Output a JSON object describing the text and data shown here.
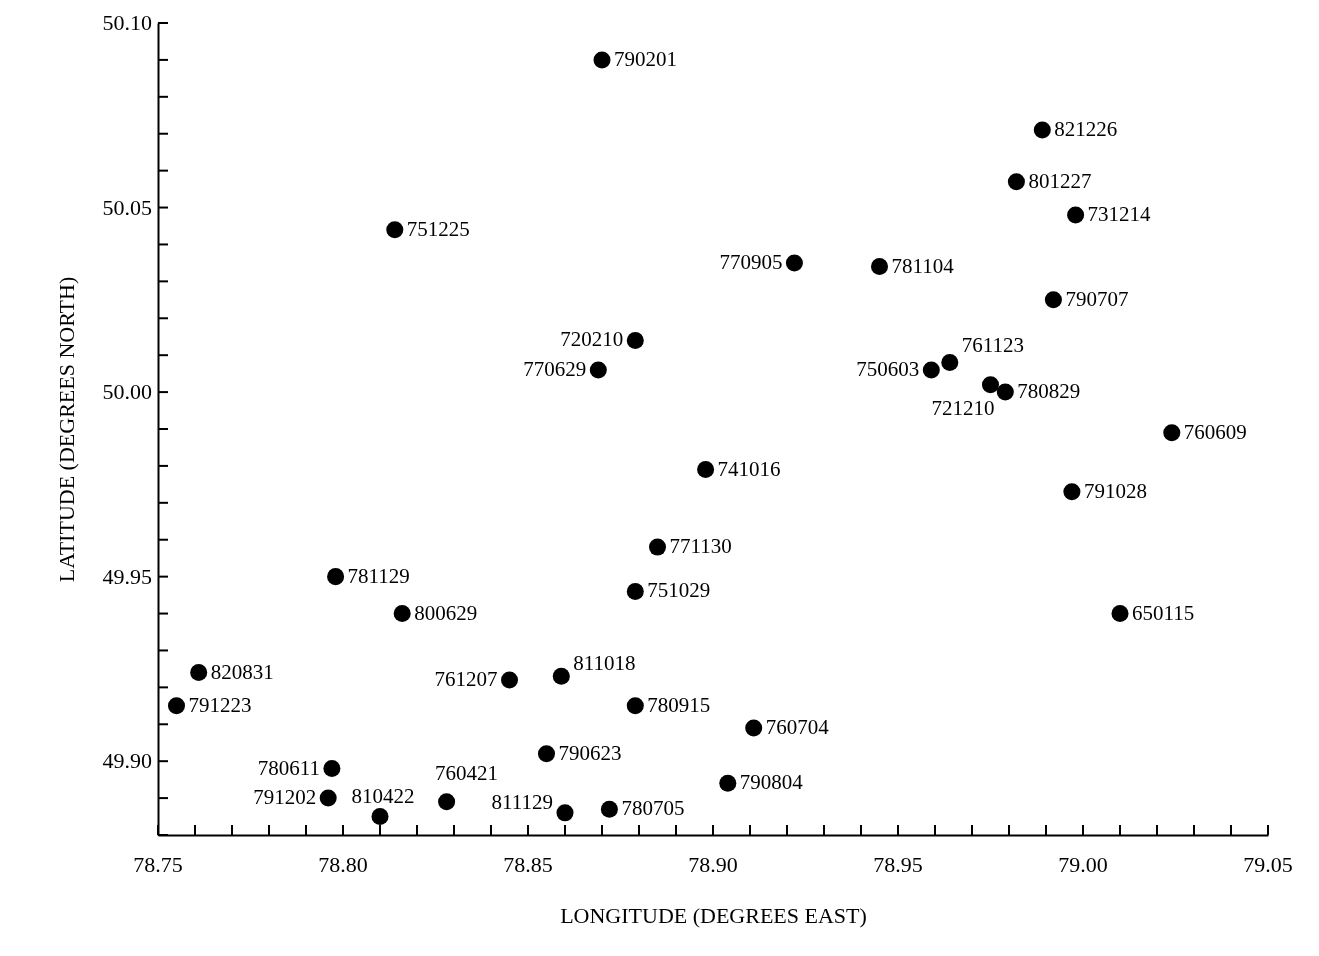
{
  "chart_data": {
    "type": "scatter",
    "xlabel": "LONGITUDE (DEGREES EAST)",
    "ylabel": "LATITUDE (DEGREES NORTH)",
    "x": [
      78.87,
      78.989,
      78.982,
      78.998,
      78.814,
      78.922,
      78.945,
      78.992,
      78.879,
      78.869,
      78.964,
      78.959,
      78.975,
      78.979,
      79.024,
      78.898,
      78.997,
      78.885,
      78.798,
      78.879,
      78.816,
      79.01,
      78.761,
      78.845,
      78.859,
      78.755,
      78.879,
      78.911,
      78.855,
      78.797,
      78.904,
      78.796,
      78.828,
      78.81,
      78.86,
      78.872
    ],
    "series": [
      {
        "color": "#000000",
        "values": [
          50.09,
          50.071,
          50.057,
          50.048,
          50.044,
          50.035,
          50.034,
          50.025,
          50.014,
          50.006,
          50.008,
          50.006,
          50.002,
          50.0,
          49.989,
          49.979,
          49.973,
          49.958,
          49.95,
          49.946,
          49.94,
          49.94,
          49.924,
          49.922,
          49.923,
          49.915,
          49.915,
          49.909,
          49.902,
          49.898,
          49.894,
          49.89,
          49.889,
          49.885,
          49.886,
          49.887
        ]
      }
    ],
    "annotations": [
      {
        "text": "790201",
        "x": 78.87,
        "y": 50.09
      },
      {
        "text": "821226",
        "x": 78.989,
        "y": 50.071
      },
      {
        "text": "801227",
        "x": 78.982,
        "y": 50.057
      },
      {
        "text": "731214",
        "x": 78.998,
        "y": 50.048
      },
      {
        "text": "751225",
        "x": 78.814,
        "y": 50.044
      },
      {
        "text": "770905",
        "x": 78.922,
        "y": 50.035
      },
      {
        "text": "781104",
        "x": 78.945,
        "y": 50.034
      },
      {
        "text": "790707",
        "x": 78.992,
        "y": 50.025
      },
      {
        "text": "720210",
        "x": 78.879,
        "y": 50.014
      },
      {
        "text": "770629",
        "x": 78.869,
        "y": 50.006
      },
      {
        "text": "761123",
        "x": 78.964,
        "y": 50.008
      },
      {
        "text": "750603",
        "x": 78.959,
        "y": 50.006
      },
      {
        "text": "721210",
        "x": 78.975,
        "y": 50.002
      },
      {
        "text": "780829",
        "x": 78.979,
        "y": 50.0
      },
      {
        "text": "760609",
        "x": 79.024,
        "y": 49.989
      },
      {
        "text": "741016",
        "x": 78.898,
        "y": 49.979
      },
      {
        "text": "791028",
        "x": 78.997,
        "y": 49.973
      },
      {
        "text": "771130",
        "x": 78.885,
        "y": 49.958
      },
      {
        "text": "781129",
        "x": 78.798,
        "y": 49.95
      },
      {
        "text": "751029",
        "x": 78.879,
        "y": 49.946
      },
      {
        "text": "800629",
        "x": 78.816,
        "y": 49.94
      },
      {
        "text": "650115",
        "x": 79.01,
        "y": 49.94
      },
      {
        "text": "820831",
        "x": 78.761,
        "y": 49.924
      },
      {
        "text": "761207",
        "x": 78.845,
        "y": 49.922
      },
      {
        "text": "811018",
        "x": 78.859,
        "y": 49.923
      },
      {
        "text": "791223",
        "x": 78.755,
        "y": 49.915
      },
      {
        "text": "780915",
        "x": 78.879,
        "y": 49.915
      },
      {
        "text": "760704",
        "x": 78.911,
        "y": 49.909
      },
      {
        "text": "790623",
        "x": 78.855,
        "y": 49.902
      },
      {
        "text": "780611",
        "x": 78.797,
        "y": 49.898
      },
      {
        "text": "790804",
        "x": 78.904,
        "y": 49.894
      },
      {
        "text": "791202",
        "x": 78.796,
        "y": 49.89
      },
      {
        "text": "760421",
        "x": 78.828,
        "y": 49.889
      },
      {
        "text": "810422",
        "x": 78.81,
        "y": 49.885
      },
      {
        "text": "811129",
        "x": 78.86,
        "y": 49.886
      },
      {
        "text": "780705",
        "x": 78.872,
        "y": 49.887
      }
    ],
    "marker": "circle",
    "grid": false,
    "xlim": [
      78.75,
      79.05
    ],
    "xticks": [
      78.75,
      {
        "value": 78.76,
        "label": null
      },
      {
        "value": 78.77,
        "label": null
      },
      {
        "value": 78.78,
        "label": null
      },
      {
        "value": 78.79,
        "label": null
      },
      {
        "value": 78.8,
        "label": "78.80"
      },
      {
        "value": 78.81,
        "label": null
      },
      {
        "value": 78.82,
        "label": null
      },
      {
        "value": 78.83,
        "label": null
      },
      {
        "value": 78.84,
        "label": null
      },
      78.85,
      {
        "value": 78.86,
        "label": null
      },
      {
        "value": 78.87,
        "label": null
      },
      {
        "value": 78.88,
        "label": null
      },
      {
        "value": 78.89,
        "label": null
      },
      {
        "value": 78.9,
        "label": "78.90"
      },
      {
        "value": 78.91,
        "label": null
      },
      {
        "value": 78.92,
        "label": null
      },
      {
        "value": 78.93,
        "label": null
      },
      {
        "value": 78.94,
        "label": null
      },
      78.95,
      {
        "value": 78.96,
        "label": null
      },
      {
        "value": 78.97,
        "label": null
      },
      {
        "value": 78.98,
        "label": null
      },
      {
        "value": 78.99,
        "label": null
      },
      {
        "value": 79,
        "label": "79.00"
      },
      {
        "value": 79.01,
        "label": null
      },
      {
        "value": 79.02,
        "label": null
      },
      {
        "value": 79.03,
        "label": null
      },
      {
        "value": 79.04,
        "label": null
      },
      79.05
    ],
    "ylim": [
      49.88,
      50.1
    ],
    "yticks": [
      {
        "value": 49.88,
        "label": null
      },
      {
        "value": 49.89,
        "label": null
      },
      {
        "value": 49.9,
        "label": "49.90"
      },
      {
        "value": 49.91,
        "label": null
      },
      {
        "value": 49.92,
        "label": null
      },
      {
        "value": 49.93,
        "label": null
      },
      {
        "value": 49.94,
        "label": null
      },
      49.95,
      {
        "value": 49.96,
        "label": null
      },
      {
        "value": 49.97,
        "label": null
      },
      {
        "value": 49.98,
        "label": null
      },
      {
        "value": 49.99,
        "label": null
      },
      {
        "value": 50,
        "label": "50.00"
      },
      {
        "value": 50.01,
        "label": null
      },
      {
        "value": 50.02,
        "label": null
      },
      {
        "value": 50.03,
        "label": null
      },
      {
        "value": 50.04,
        "label": null
      },
      50.05,
      {
        "value": 50.06,
        "label": null
      },
      {
        "value": 50.07,
        "label": null
      },
      {
        "value": 50.08,
        "label": null
      },
      {
        "value": 50.09,
        "label": null
      },
      {
        "value": 50.1,
        "label": "50.10"
      }
    ]
  }
}
